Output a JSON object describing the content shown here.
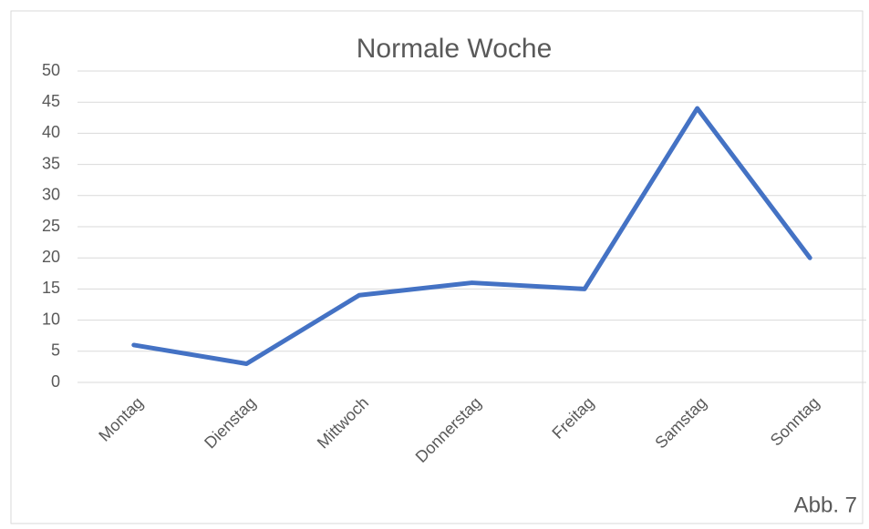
{
  "chart_data": {
    "type": "line",
    "title": "Normale Woche",
    "categories": [
      "Montag",
      "Dienstag",
      "Mittwoch",
      "Donnerstag",
      "Freitag",
      "Samstag",
      "Sonntag"
    ],
    "values": [
      6,
      3,
      14,
      16,
      15,
      44,
      20
    ],
    "color": "#4472c4",
    "ylim": [
      0,
      50
    ],
    "yticks": [
      0,
      5,
      10,
      15,
      20,
      25,
      30,
      35,
      40,
      45,
      50
    ],
    "grid": true,
    "annotation": "Abb. 7"
  }
}
